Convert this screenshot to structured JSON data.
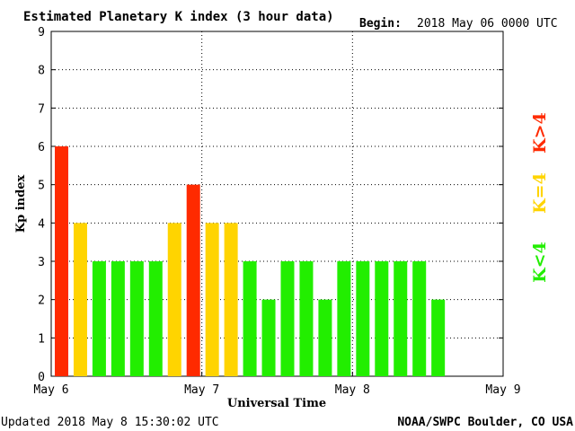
{
  "header": {
    "title": "Estimated Planetary K index (3 hour data)",
    "begin_label": "Begin:",
    "begin_value": "2018 May 06 0000 UTC"
  },
  "footer": {
    "updated": "Updated 2018 May  8 15:30:02 UTC",
    "source": "NOAA/SWPC Boulder, CO USA"
  },
  "legend": {
    "high": "K>4",
    "mid": "K=4",
    "low": "K<4"
  },
  "colors": {
    "high": "#ff2a00",
    "mid": "#ffd400",
    "low": "#22ee00"
  },
  "chart_data": {
    "type": "bar",
    "xlabel": "Universal Time",
    "ylabel": "Kp index",
    "ylim": [
      0,
      9
    ],
    "yticks": [
      "0",
      "1",
      "2",
      "3",
      "4",
      "5",
      "6",
      "7",
      "8",
      "9"
    ],
    "xticks": [
      "May 6",
      "May 7",
      "May 8",
      "May 9"
    ],
    "slots_total": 24,
    "grid": true,
    "values": [
      6,
      4,
      3,
      3,
      3,
      3,
      4,
      5,
      4,
      4,
      3,
      2,
      3,
      3,
      2,
      3,
      3,
      3,
      3,
      3,
      2
    ]
  }
}
